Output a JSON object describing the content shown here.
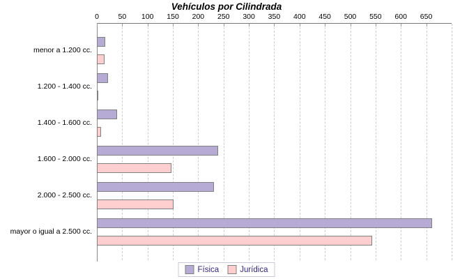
{
  "title": "Vehículos por Cilindrada",
  "chart_data": {
    "type": "bar",
    "orientation": "horizontal",
    "title": "Vehículos por Cilindrada",
    "categories": [
      "menor a 1.200 cc.",
      "1.200 - 1.400 cc.",
      "1.400 - 1.600 cc.",
      "1.600 - 2.000 cc.",
      "2.000 - 2.500 cc.",
      "mayor o igual a 2.500 cc."
    ],
    "series": [
      {
        "name": "Física",
        "color": "#b5abd5",
        "border_color": "#808080",
        "values": [
          15,
          20,
          38,
          238,
          230,
          660
        ]
      },
      {
        "name": "Jurídica",
        "color": "#ffcfcf",
        "border_color": "#808080",
        "values": [
          14,
          1,
          7,
          146,
          150,
          542
        ]
      }
    ],
    "xlabel": "",
    "ylabel": "",
    "x_ticks": [
      0,
      50,
      100,
      150,
      200,
      250,
      300,
      350,
      400,
      450,
      500,
      550,
      600,
      650
    ],
    "xlim": [
      0,
      700
    ],
    "grid": true,
    "grid_color": "#cdcdcd",
    "axis_color": "#808080",
    "legend_position": "bottom",
    "legend_text_color": "#37277b"
  }
}
